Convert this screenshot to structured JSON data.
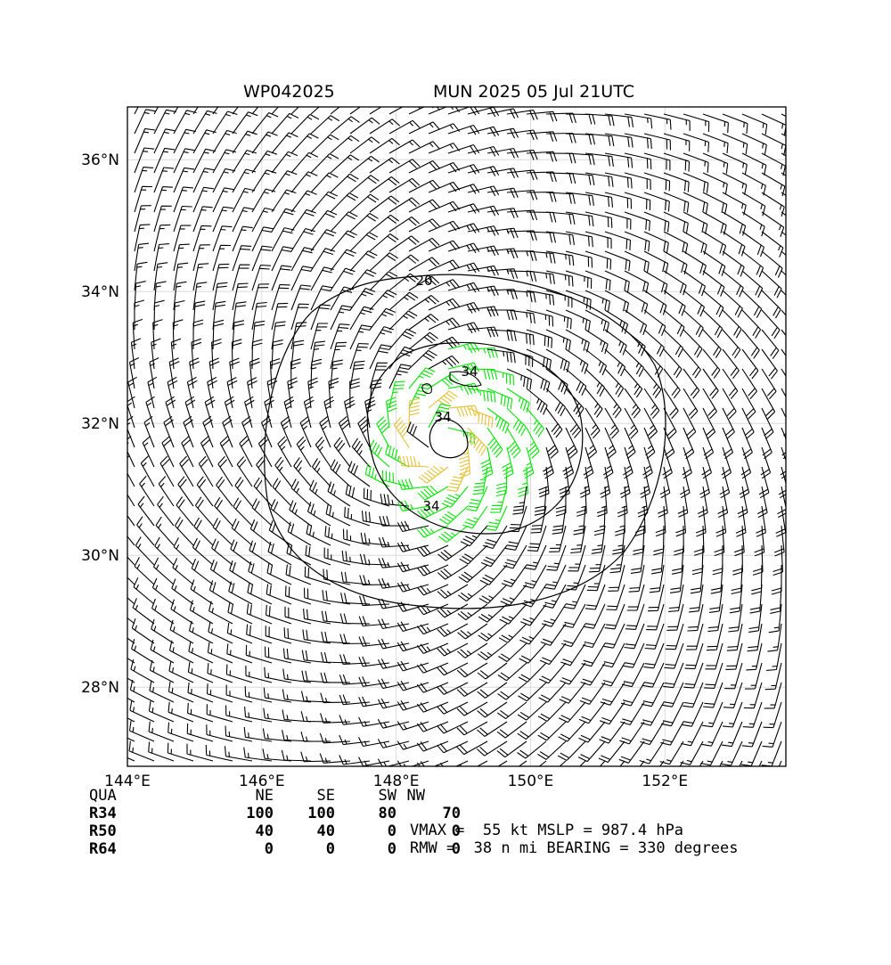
{
  "header": {
    "storm_id": "WP042025",
    "run_label": "MUN 2025 05 Jul 21UTC"
  },
  "chart_data": {
    "type": "wind_barbs_with_contours",
    "lon_range": [
      144.0,
      153.8
    ],
    "lat_range": [
      26.8,
      36.8
    ],
    "x_ticks": [
      "144°E",
      "146°E",
      "148°E",
      "150°E",
      "152°E"
    ],
    "x_tick_values": [
      144,
      146,
      148,
      150,
      152
    ],
    "y_ticks": [
      "28°N",
      "30°N",
      "32°N",
      "34°N",
      "36°N"
    ],
    "y_tick_values": [
      28,
      30,
      32,
      34,
      36
    ],
    "grid": true,
    "center": {
      "lon": 148.65,
      "lat": 31.75
    },
    "contours": [
      {
        "level": "20",
        "value": 20
      },
      {
        "level": "34",
        "value": 34
      },
      {
        "level": "34",
        "value": 34
      }
    ],
    "barb_colors": {
      "below_34kt": "#000000",
      "34_to_50kt": "#00e600",
      "above_50kt": "#e6c032"
    },
    "vmax_kt": 55,
    "rmw_nmi": 38
  },
  "radii_table": {
    "headers": [
      "QUA",
      "NE",
      "SE",
      "SW",
      "NW"
    ],
    "rows": [
      {
        "label": "R34",
        "values": [
          "100",
          "100",
          "80",
          "70"
        ]
      },
      {
        "label": "R50",
        "values": [
          "40",
          "40",
          "0",
          "0"
        ]
      },
      {
        "label": "R64",
        "values": [
          "0",
          "0",
          "0",
          "0"
        ]
      }
    ]
  },
  "info": {
    "line1": "VMAX =  55 kt MSLP = 987.4 hPa",
    "line2": "RMW =  38 n mi BEARING = 330 degrees"
  }
}
